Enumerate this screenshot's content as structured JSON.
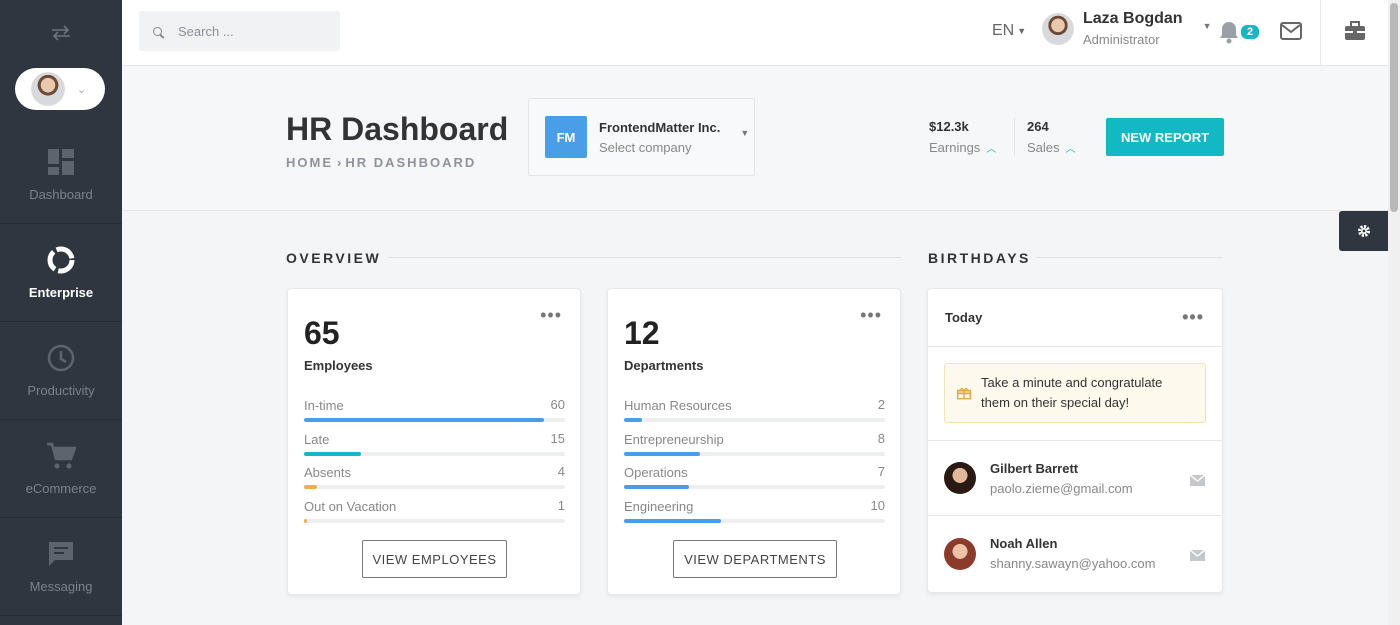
{
  "sidebar": {
    "items": [
      {
        "label": "Dashboard",
        "icon": "dashboard-icon"
      },
      {
        "label": "Enterprise",
        "icon": "donut-icon"
      },
      {
        "label": "Productivity",
        "icon": "clock-icon"
      },
      {
        "label": "eCommerce",
        "icon": "cart-icon"
      },
      {
        "label": "Messaging",
        "icon": "chat-icon"
      }
    ],
    "active": "Enterprise"
  },
  "topbar": {
    "search_placeholder": "Search ...",
    "language": "EN",
    "user_name": "Laza Bogdan",
    "user_role": "Administrator",
    "notification_count": "2"
  },
  "header": {
    "title": "HR Dashboard",
    "breadcrumb_home": "HOME",
    "breadcrumb_current": "HR DASHBOARD",
    "company_logo": "FM",
    "company_name": "FrontendMatter Inc.",
    "company_select": "Select company",
    "earnings_value": "$12.3k",
    "earnings_label": "Earnings",
    "sales_value": "264",
    "sales_label": "Sales",
    "new_report_label": "NEW REPORT"
  },
  "overview": {
    "title": "OVERVIEW",
    "employees": {
      "count": "65",
      "label": "Employees",
      "rows": [
        {
          "label": "In-time",
          "value": "60",
          "fraction": 0.92,
          "color": "#4a9ee8"
        },
        {
          "label": "Late",
          "value": "15",
          "fraction": 0.22,
          "color": "#12b8c4"
        },
        {
          "label": "Absents",
          "value": "4",
          "fraction": 0.05,
          "color": "#f0ad4e"
        },
        {
          "label": "Out on Vacation",
          "value": "1",
          "fraction": 0.01,
          "color": "#f0ad4e"
        }
      ],
      "button": "VIEW EMPLOYEES"
    },
    "departments": {
      "count": "12",
      "label": "Departments",
      "rows": [
        {
          "label": "Human Resources",
          "value": "2",
          "fraction": 0.07,
          "color": "#4a9ee8"
        },
        {
          "label": "Entrepreneurship",
          "value": "8",
          "fraction": 0.29,
          "color": "#4a9ee8"
        },
        {
          "label": "Operations",
          "value": "7",
          "fraction": 0.25,
          "color": "#4a9ee8"
        },
        {
          "label": "Engineering",
          "value": "10",
          "fraction": 0.37,
          "color": "#4a9ee8"
        }
      ],
      "button": "VIEW DEPARTMENTS"
    }
  },
  "birthdays": {
    "title": "BIRTHDAYS",
    "tab": "Today",
    "message": "Take a minute and congratulate them on their special day!",
    "people": [
      {
        "name": "Gilbert Barrett",
        "email": "paolo.zieme@gmail.com"
      },
      {
        "name": "Noah Allen",
        "email": "shanny.sawayn@yahoo.com"
      }
    ]
  },
  "colors": {
    "accent": "#12b8c4",
    "sidebar": "#2f3640",
    "company_logo": "#4a9ee8"
  }
}
